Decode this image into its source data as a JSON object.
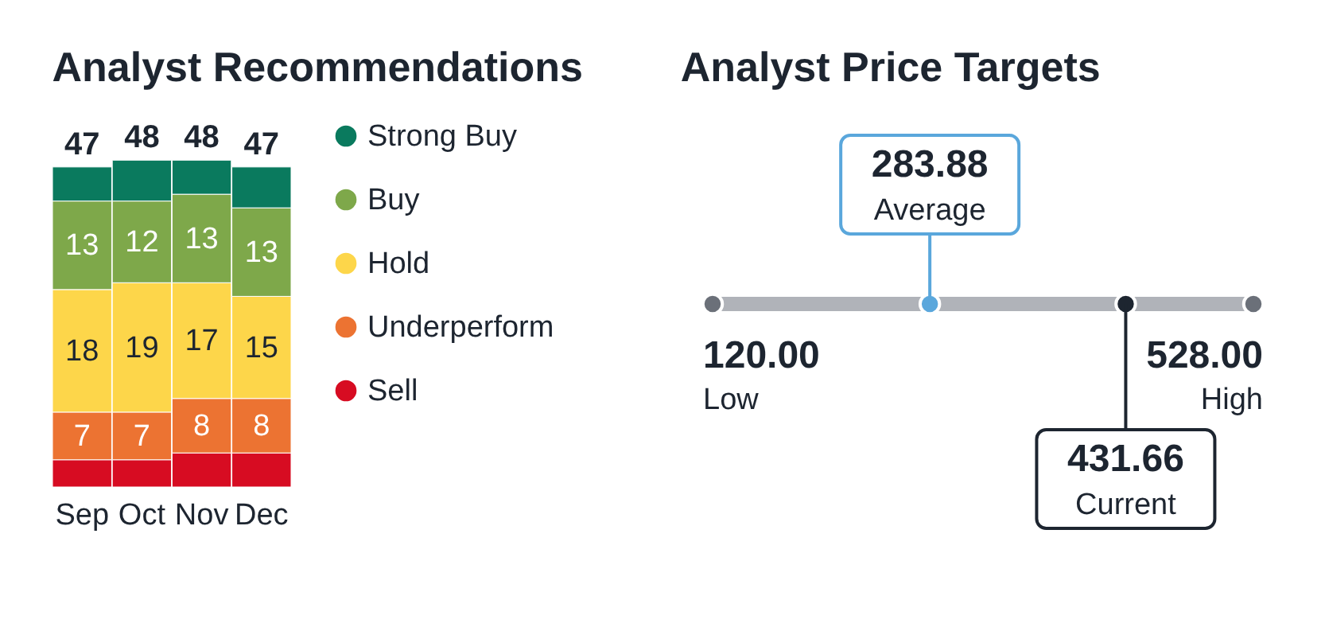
{
  "chart_data": [
    {
      "type": "bar",
      "title": "Analyst Recommendations",
      "stacked": true,
      "legend": "right",
      "categories": [
        "Sep",
        "Oct",
        "Nov",
        "Dec"
      ],
      "totals": [
        "47",
        "48",
        "48",
        "47"
      ],
      "series": [
        {
          "name": "Sell",
          "color": "#d70c22",
          "values": [
            4,
            4,
            5,
            5
          ],
          "value_labels": [
            null,
            null,
            null,
            null
          ]
        },
        {
          "name": "Underperform",
          "color": "#ec7332",
          "values": [
            7,
            7,
            8,
            8
          ],
          "value_labels": [
            "7",
            "7",
            "8",
            "8"
          ]
        },
        {
          "name": "Hold",
          "color": "#fdd64a",
          "values": [
            18,
            19,
            17,
            15
          ],
          "value_labels": [
            "18",
            "19",
            "17",
            "15"
          ]
        },
        {
          "name": "Buy",
          "color": "#7ea84a",
          "values": [
            13,
            12,
            13,
            13
          ],
          "value_labels": [
            "13",
            "12",
            "13",
            "13"
          ]
        },
        {
          "name": "Strong Buy",
          "color": "#0a7a5e",
          "values": [
            5,
            6,
            5,
            6
          ],
          "value_labels": [
            null,
            null,
            null,
            null
          ]
        }
      ]
    },
    {
      "type": "other",
      "title": "Analyst Price Targets",
      "categories": [
        "Low",
        "Average",
        "Current",
        "High"
      ],
      "values": [
        120.0,
        283.88,
        431.66,
        528.0
      ],
      "value_labels": [
        "120.00",
        "283.88",
        "431.66",
        "528.00"
      ],
      "colors": [
        "#6b7079",
        "#5aa7dc",
        "#1d2530",
        "#6b7079"
      ]
    }
  ]
}
